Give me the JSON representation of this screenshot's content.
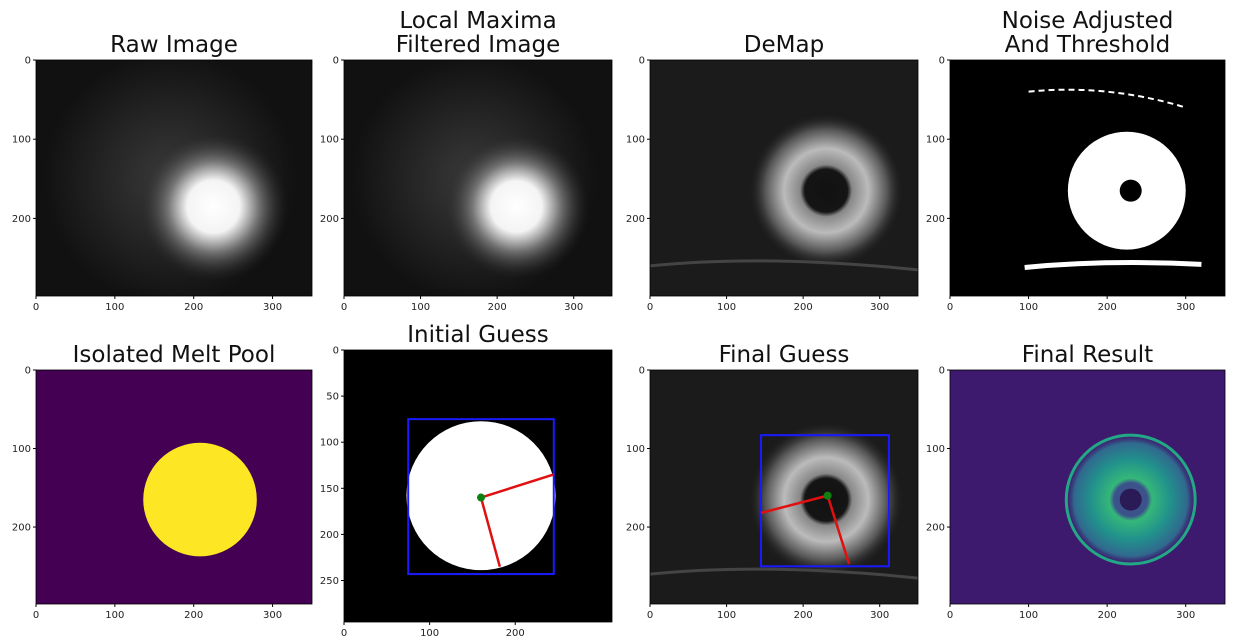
{
  "chart_data": [
    {
      "type": "image",
      "title": [
        "Raw Image"
      ],
      "xlim": [
        0,
        350
      ],
      "ylim": [
        0,
        298
      ],
      "y_inverted": true,
      "xticks": [
        0,
        100,
        200,
        300
      ],
      "yticks": [
        0,
        100,
        200
      ]
    },
    {
      "type": "image",
      "title": [
        "Local Maxima",
        "Filtered Image"
      ],
      "xlim": [
        0,
        350
      ],
      "ylim": [
        0,
        298
      ],
      "y_inverted": true,
      "xticks": [
        0,
        100,
        200,
        300
      ],
      "yticks": [
        0,
        100,
        200
      ]
    },
    {
      "type": "image",
      "title": [
        "DeMap"
      ],
      "xlim": [
        0,
        350
      ],
      "ylim": [
        0,
        298
      ],
      "y_inverted": true,
      "xticks": [
        0,
        100,
        200,
        300
      ],
      "yticks": [
        0,
        100,
        200
      ]
    },
    {
      "type": "image",
      "title": [
        "Noise Adjusted",
        "And Threshold"
      ],
      "xlim": [
        0,
        350
      ],
      "ylim": [
        0,
        298
      ],
      "y_inverted": true,
      "xticks": [
        0,
        100,
        200,
        300
      ],
      "yticks": [
        0,
        100,
        200
      ]
    },
    {
      "type": "image",
      "title": [
        "Isolated Melt Pool"
      ],
      "xlim": [
        0,
        350
      ],
      "ylim": [
        0,
        298
      ],
      "y_inverted": true,
      "xticks": [
        0,
        100,
        200,
        300
      ],
      "yticks": [
        0,
        100,
        200
      ]
    },
    {
      "type": "image",
      "title": [
        "Initial Guess"
      ],
      "xlim": [
        0,
        313
      ],
      "ylim": [
        0,
        295
      ],
      "y_inverted": true,
      "xticks": [
        0,
        100,
        200
      ],
      "yticks": [
        0,
        50,
        100,
        150,
        200,
        250
      ]
    },
    {
      "type": "image",
      "title": [
        "Final Guess"
      ],
      "xlim": [
        0,
        350
      ],
      "ylim": [
        0,
        298
      ],
      "y_inverted": true,
      "xticks": [
        0,
        100,
        200,
        300
      ],
      "yticks": [
        0,
        100,
        200
      ]
    },
    {
      "type": "image",
      "title": [
        "Final Result"
      ],
      "xlim": [
        0,
        350
      ],
      "ylim": [
        0,
        298
      ],
      "y_inverted": true,
      "xticks": [
        0,
        100,
        200,
        300
      ],
      "yticks": [
        0,
        100,
        200
      ]
    }
  ]
}
